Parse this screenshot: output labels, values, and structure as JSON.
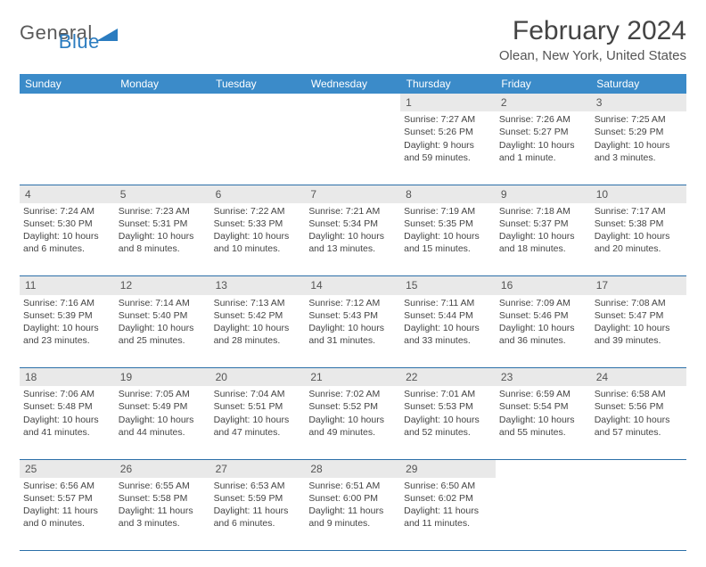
{
  "brand": {
    "name_a": "General",
    "name_b": "Blue"
  },
  "title": "February 2024",
  "location": "Olean, New York, United States",
  "colors": {
    "header_bg": "#3b8bc9",
    "header_text": "#ffffff",
    "daynum_bg": "#e9e9e9",
    "row_border": "#2b6fa8",
    "logo_blue": "#2b7cc0",
    "text": "#444444"
  },
  "weekdays": [
    "Sunday",
    "Monday",
    "Tuesday",
    "Wednesday",
    "Thursday",
    "Friday",
    "Saturday"
  ],
  "weeks": [
    {
      "nums": [
        "",
        "",
        "",
        "",
        "1",
        "2",
        "3"
      ],
      "info": [
        null,
        null,
        null,
        null,
        {
          "sunrise": "7:27 AM",
          "sunset": "5:26 PM",
          "daylight": "9 hours and 59 minutes."
        },
        {
          "sunrise": "7:26 AM",
          "sunset": "5:27 PM",
          "daylight": "10 hours and 1 minute."
        },
        {
          "sunrise": "7:25 AM",
          "sunset": "5:29 PM",
          "daylight": "10 hours and 3 minutes."
        }
      ]
    },
    {
      "nums": [
        "4",
        "5",
        "6",
        "7",
        "8",
        "9",
        "10"
      ],
      "info": [
        {
          "sunrise": "7:24 AM",
          "sunset": "5:30 PM",
          "daylight": "10 hours and 6 minutes."
        },
        {
          "sunrise": "7:23 AM",
          "sunset": "5:31 PM",
          "daylight": "10 hours and 8 minutes."
        },
        {
          "sunrise": "7:22 AM",
          "sunset": "5:33 PM",
          "daylight": "10 hours and 10 minutes."
        },
        {
          "sunrise": "7:21 AM",
          "sunset": "5:34 PM",
          "daylight": "10 hours and 13 minutes."
        },
        {
          "sunrise": "7:19 AM",
          "sunset": "5:35 PM",
          "daylight": "10 hours and 15 minutes."
        },
        {
          "sunrise": "7:18 AM",
          "sunset": "5:37 PM",
          "daylight": "10 hours and 18 minutes."
        },
        {
          "sunrise": "7:17 AM",
          "sunset": "5:38 PM",
          "daylight": "10 hours and 20 minutes."
        }
      ]
    },
    {
      "nums": [
        "11",
        "12",
        "13",
        "14",
        "15",
        "16",
        "17"
      ],
      "info": [
        {
          "sunrise": "7:16 AM",
          "sunset": "5:39 PM",
          "daylight": "10 hours and 23 minutes."
        },
        {
          "sunrise": "7:14 AM",
          "sunset": "5:40 PM",
          "daylight": "10 hours and 25 minutes."
        },
        {
          "sunrise": "7:13 AM",
          "sunset": "5:42 PM",
          "daylight": "10 hours and 28 minutes."
        },
        {
          "sunrise": "7:12 AM",
          "sunset": "5:43 PM",
          "daylight": "10 hours and 31 minutes."
        },
        {
          "sunrise": "7:11 AM",
          "sunset": "5:44 PM",
          "daylight": "10 hours and 33 minutes."
        },
        {
          "sunrise": "7:09 AM",
          "sunset": "5:46 PM",
          "daylight": "10 hours and 36 minutes."
        },
        {
          "sunrise": "7:08 AM",
          "sunset": "5:47 PM",
          "daylight": "10 hours and 39 minutes."
        }
      ]
    },
    {
      "nums": [
        "18",
        "19",
        "20",
        "21",
        "22",
        "23",
        "24"
      ],
      "info": [
        {
          "sunrise": "7:06 AM",
          "sunset": "5:48 PM",
          "daylight": "10 hours and 41 minutes."
        },
        {
          "sunrise": "7:05 AM",
          "sunset": "5:49 PM",
          "daylight": "10 hours and 44 minutes."
        },
        {
          "sunrise": "7:04 AM",
          "sunset": "5:51 PM",
          "daylight": "10 hours and 47 minutes."
        },
        {
          "sunrise": "7:02 AM",
          "sunset": "5:52 PM",
          "daylight": "10 hours and 49 minutes."
        },
        {
          "sunrise": "7:01 AM",
          "sunset": "5:53 PM",
          "daylight": "10 hours and 52 minutes."
        },
        {
          "sunrise": "6:59 AM",
          "sunset": "5:54 PM",
          "daylight": "10 hours and 55 minutes."
        },
        {
          "sunrise": "6:58 AM",
          "sunset": "5:56 PM",
          "daylight": "10 hours and 57 minutes."
        }
      ]
    },
    {
      "nums": [
        "25",
        "26",
        "27",
        "28",
        "29",
        "",
        ""
      ],
      "info": [
        {
          "sunrise": "6:56 AM",
          "sunset": "5:57 PM",
          "daylight": "11 hours and 0 minutes."
        },
        {
          "sunrise": "6:55 AM",
          "sunset": "5:58 PM",
          "daylight": "11 hours and 3 minutes."
        },
        {
          "sunrise": "6:53 AM",
          "sunset": "5:59 PM",
          "daylight": "11 hours and 6 minutes."
        },
        {
          "sunrise": "6:51 AM",
          "sunset": "6:00 PM",
          "daylight": "11 hours and 9 minutes."
        },
        {
          "sunrise": "6:50 AM",
          "sunset": "6:02 PM",
          "daylight": "11 hours and 11 minutes."
        },
        null,
        null
      ]
    }
  ],
  "labels": {
    "sunrise": "Sunrise:",
    "sunset": "Sunset:",
    "daylight": "Daylight:"
  }
}
